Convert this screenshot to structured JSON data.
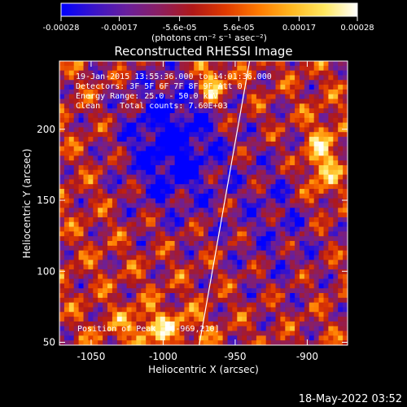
{
  "colorbar": {
    "ticks": [
      "-0.00028",
      "-0.00017",
      "-5.6e-05",
      "5.6e-05",
      "0.00017",
      "0.00028"
    ],
    "tick_values": [
      -0.00028,
      -0.00017,
      -5.6e-05,
      5.6e-05,
      0.00017,
      0.00028
    ],
    "range": [
      -0.00028,
      0.00028
    ],
    "unit_label": "(photons cm⁻² s⁻¹ asec⁻²)",
    "colors": [
      "#0000ff",
      "#3a14c8",
      "#6a1f9c",
      "#8c1f60",
      "#b01818",
      "#e03a00",
      "#ff7a00",
      "#ffb820",
      "#ffe860",
      "#ffffff"
    ]
  },
  "header": {
    "footer_date": "18-May-2022 03:52"
  },
  "chart_data": {
    "type": "heatmap",
    "title": "Reconstructed RHESSI Image",
    "xlabel": "Heliocentric X (arcsec)",
    "ylabel": "Heliocentric Y (arcsec)",
    "xlim": [
      -1072,
      -872
    ],
    "ylim": [
      48,
      248
    ],
    "xticks": [
      "-1050",
      "-1000",
      "-950",
      "-900"
    ],
    "xtick_values": [
      -1050,
      -1000,
      -950,
      -900
    ],
    "yticks": [
      "50",
      "100",
      "150",
      "200"
    ],
    "ytick_values": [
      50,
      100,
      150,
      200
    ],
    "annotations": [
      "19-Jan-2015 13:55:36.000 to 14:01:36.000",
      "Detectors: 3F 5F 6F 7F 8F 9F Att 0",
      "Energy Range: 25.0 - 50.0 keV",
      "Clean    Total counts: 7.60E+03"
    ],
    "peak_label": "Position of Peak = [-969,210]",
    "peak": [
      -969,
      210
    ],
    "limb_line": [
      [
        -975,
        48
      ],
      [
        -940,
        248
      ]
    ],
    "grid": false
  }
}
